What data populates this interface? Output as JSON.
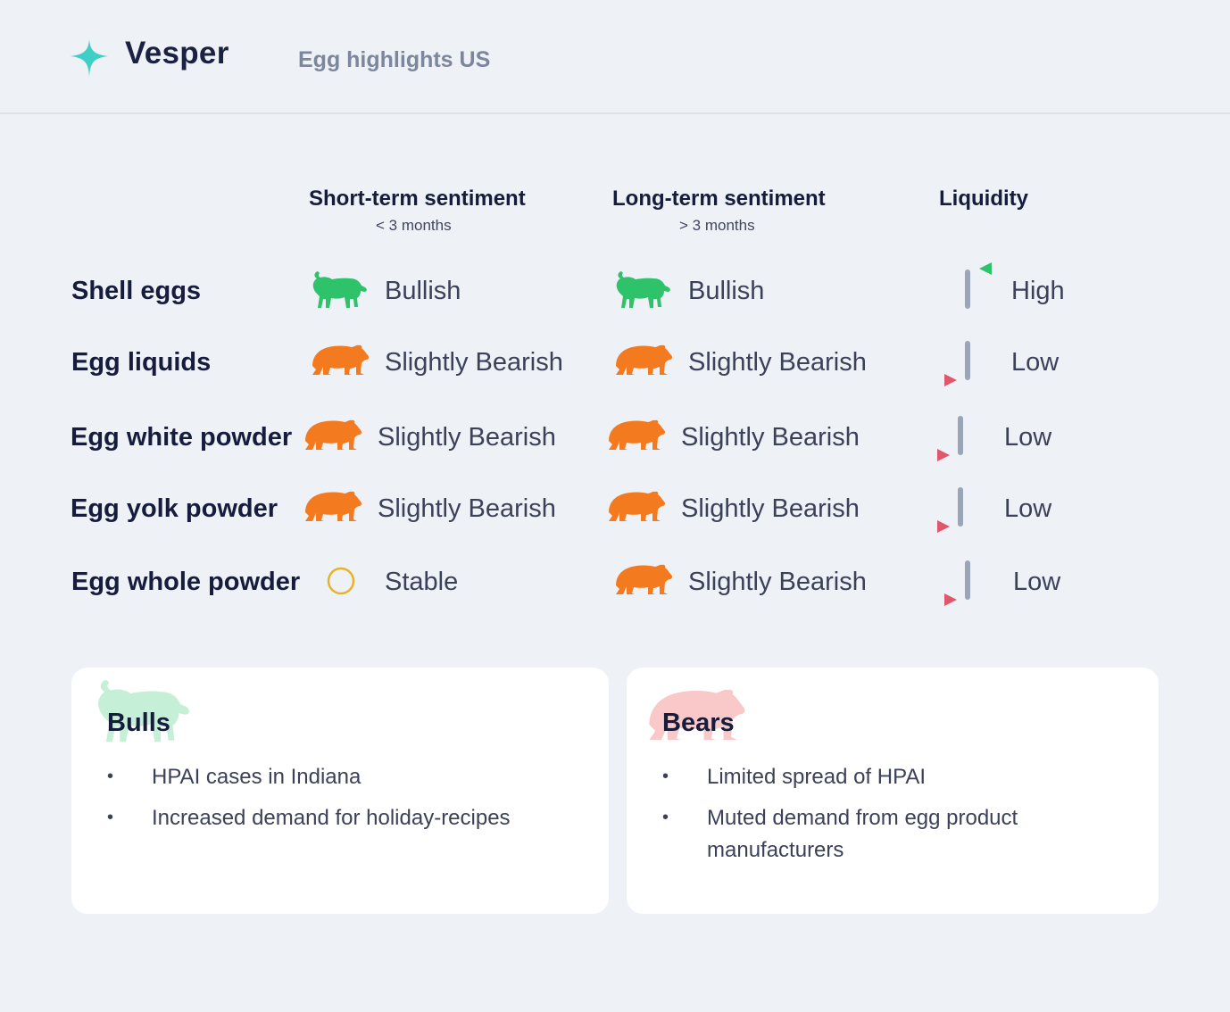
{
  "header": {
    "brand": "Vesper",
    "subtitle": "Egg highlights US",
    "logo_icon": "sparkle-star-icon"
  },
  "columns": {
    "short_term": {
      "title": "Short-term sentiment",
      "sub": "< 3 months"
    },
    "long_term": {
      "title": "Long-term sentiment",
      "sub": "> 3 months"
    },
    "liquidity": {
      "title": "Liquidity"
    }
  },
  "rows": [
    {
      "label": "Shell eggs",
      "short": {
        "icon": "bull-icon",
        "text": "Bullish"
      },
      "long": {
        "icon": "bull-icon",
        "text": "Bullish"
      },
      "liquidity": {
        "direction": "up",
        "text": "High"
      }
    },
    {
      "label": "Egg liquids",
      "short": {
        "icon": "bear-icon",
        "text": "Slightly Bearish"
      },
      "long": {
        "icon": "bear-icon",
        "text": "Slightly Bearish"
      },
      "liquidity": {
        "direction": "down",
        "text": "Low"
      }
    },
    {
      "label": "Egg white powder",
      "short": {
        "icon": "bear-icon",
        "text": "Slightly Bearish"
      },
      "long": {
        "icon": "bear-icon",
        "text": "Slightly Bearish"
      },
      "liquidity": {
        "direction": "down",
        "text": "Low"
      }
    },
    {
      "label": "Egg yolk powder",
      "short": {
        "icon": "bear-icon",
        "text": "Slightly Bearish"
      },
      "long": {
        "icon": "bear-icon",
        "text": "Slightly Bearish"
      },
      "liquidity": {
        "direction": "down",
        "text": "Low"
      }
    },
    {
      "label": "Egg whole powder",
      "short": {
        "icon": "stable-circle-icon",
        "text": "Stable"
      },
      "long": {
        "icon": "bear-icon",
        "text": "Slightly Bearish"
      },
      "liquidity": {
        "direction": "down",
        "text": "Low"
      }
    }
  ],
  "bulls": {
    "title": "Bulls",
    "items": [
      "HPAI cases in Indiana",
      "Increased demand for holiday-recipes"
    ]
  },
  "bears": {
    "title": "Bears",
    "items": [
      "Limited spread of HPAI",
      "Muted demand from egg product manufacturers"
    ]
  },
  "colors": {
    "bull": "#2ec26a",
    "bear": "#f47a20",
    "stable": "#e8b32a",
    "liquidity_up": "#2ec26a",
    "liquidity_down": "#e0566a",
    "liquidity_bar": "#9aa5b8",
    "logo": "#3ecfc6",
    "bull_card_bg": "#c6efd8",
    "bear_card_bg": "#f9c9c9"
  }
}
